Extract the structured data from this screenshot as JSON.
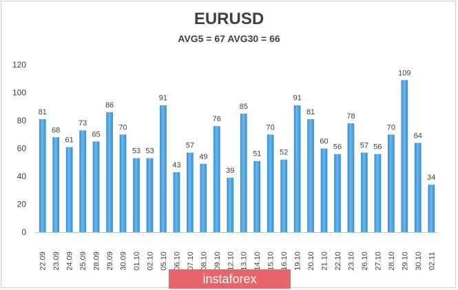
{
  "watermark": "instaforex",
  "chart_data": {
    "type": "bar",
    "title": "EURUSD",
    "subtitle": "AVG5 = 67 AVG30 = 66",
    "categories": [
      "22.09",
      "23.09",
      "24.09",
      "25.09",
      "28.09",
      "29.09",
      "30.09",
      "01.10",
      "02.10",
      "05.10",
      "06.10",
      "07.10",
      "08.10",
      "09.10",
      "12.10",
      "13.10",
      "14.10",
      "15.10",
      "16.10",
      "19.10",
      "20.10",
      "21.10",
      "22.10",
      "23.10",
      "26.10",
      "27.10",
      "28.10",
      "29.10",
      "30.10",
      "02.11"
    ],
    "values": [
      81,
      68,
      61,
      73,
      65,
      86,
      70,
      53,
      53,
      91,
      43,
      57,
      49,
      76,
      39,
      85,
      51,
      70,
      52,
      91,
      81,
      60,
      56,
      78,
      57,
      56,
      70,
      109,
      64,
      34
    ],
    "ylim": [
      0,
      120
    ],
    "yticks": [
      0,
      20,
      40,
      60,
      80,
      100,
      120
    ],
    "grid": false,
    "bar_color": "#2f8fd6",
    "bar_color_light": "#6fb7ea"
  }
}
